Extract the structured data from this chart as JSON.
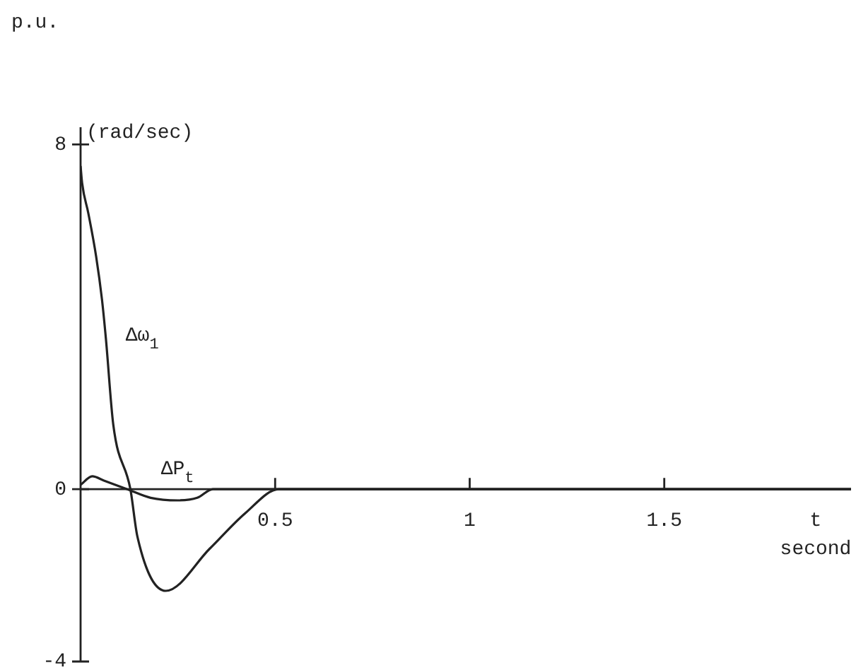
{
  "chart_data": {
    "type": "line",
    "ylabel": "p.u.",
    "xlabel": "t",
    "xlim": [
      0,
      1.98
    ],
    "ylim": [
      -4,
      8.4
    ],
    "xticks": [
      0.5,
      1,
      1.5
    ],
    "yticks": [
      -4,
      0,
      8
    ],
    "legend": false,
    "marker": "none",
    "line_style": "solid",
    "series": [
      {
        "name": "Δω$_{1}$",
        "color": "#222222",
        "x": [
          0,
          0.004,
          0.02,
          0.04,
          0.055,
          0.065,
          0.084,
          0.128,
          0.146,
          0.219,
          0.332,
          0.423,
          0.51,
          0.7,
          1.0,
          1.5,
          1.98
        ],
        "values": [
          7.5,
          7.1,
          6.4,
          5.4,
          4.4,
          3.5,
          1.5,
          0,
          -1.1,
          -2.36,
          -1.38,
          -0.56,
          0,
          0,
          0,
          0,
          0
        ]
      },
      {
        "name": "ΔP$_{t}$",
        "color": "#222222",
        "x": [
          0,
          0.03,
          0.06,
          0.12,
          0.18,
          0.25,
          0.3,
          0.34,
          0.5,
          1.0,
          1.98
        ],
        "values": [
          0.1,
          0.3,
          0.2,
          0,
          -0.2,
          -0.26,
          -0.2,
          0,
          0,
          0,
          0
        ]
      }
    ],
    "annotations": [
      "(rad/sec)",
      "second"
    ]
  }
}
